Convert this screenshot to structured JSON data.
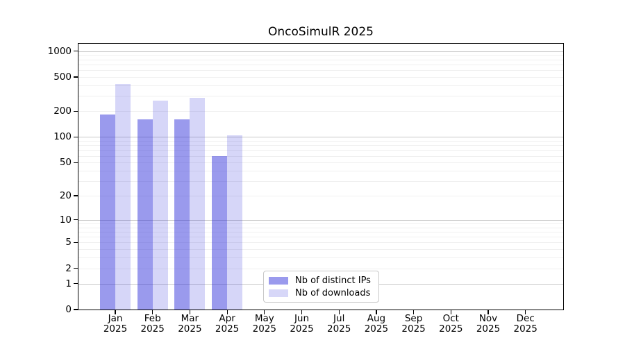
{
  "title": "OncoSimulR 2025",
  "colors": {
    "bar_ips": "rgba(30,30,215,0.45)",
    "bar_downloads": "rgba(30,30,215,0.18)",
    "swatch_ips": "#9a9aed",
    "swatch_downloads": "#d7d7f8",
    "grid_major": "#c8c8c8",
    "grid_minor": "#f0f0f0",
    "axis_frame": "#000000",
    "text": "#000000"
  },
  "legend": {
    "items": [
      {
        "label": "Nb of distinct IPs",
        "key": "ips"
      },
      {
        "label": "Nb of downloads",
        "key": "downloads"
      }
    ]
  },
  "chart_data": {
    "type": "bar",
    "title": "OncoSimulR 2025",
    "categories": [
      "Jan 2025",
      "Feb 2025",
      "Mar 2025",
      "Apr 2025",
      "May 2025",
      "Jun 2025",
      "Jul 2025",
      "Aug 2025",
      "Sep 2025",
      "Oct 2025",
      "Nov 2025",
      "Dec 2025"
    ],
    "series": [
      {
        "name": "Nb of distinct IPs",
        "key": "ips",
        "values": [
          183,
          161,
          161,
          60,
          null,
          null,
          null,
          null,
          null,
          null,
          null,
          null
        ]
      },
      {
        "name": "Nb of downloads",
        "key": "downloads",
        "values": [
          414,
          264,
          287,
          105,
          null,
          null,
          null,
          null,
          null,
          null,
          null,
          null
        ]
      }
    ],
    "xlabel": "",
    "ylabel": "",
    "y_scale": "log1p",
    "ylim": [
      0,
      1219
    ],
    "y_ticks": [
      0,
      1,
      2,
      5,
      10,
      20,
      50,
      100,
      200,
      500,
      1000
    ],
    "grid": true,
    "grid_major_values": [
      1,
      10,
      100,
      1000
    ],
    "grid_minor_values": [
      2,
      3,
      4,
      5,
      6,
      7,
      8,
      9,
      20,
      30,
      40,
      50,
      60,
      70,
      80,
      90,
      200,
      300,
      400,
      500,
      600,
      700,
      800,
      900
    ],
    "legend_position": "lower center"
  }
}
